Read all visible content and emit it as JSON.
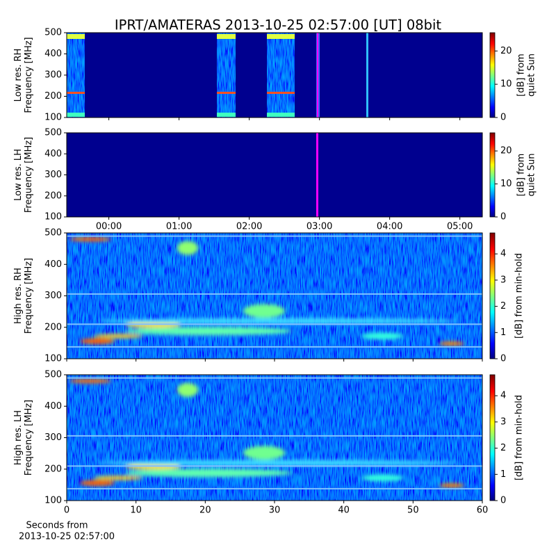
{
  "title": "IPRT/AMATERAS 2013-10-25 02:57:00 [UT]   08bit",
  "chart_data": [
    {
      "type": "heatmap",
      "ylabel": [
        "Low res. RH",
        "Frequency [MHz]"
      ],
      "ylim": [
        100,
        500
      ],
      "yticks": [
        100,
        200,
        300,
        400,
        500
      ],
      "xlim": [
        -0.6,
        5.32
      ],
      "colorbar_label": [
        "[dB] from",
        "quiet Sun"
      ],
      "clim": [
        0,
        25.5
      ],
      "cticks": [
        0,
        10,
        20
      ],
      "colormap": "jet"
    },
    {
      "type": "heatmap",
      "ylabel": [
        "Low res. LH",
        "Frequency [MHz]"
      ],
      "ylim": [
        100,
        500
      ],
      "yticks": [
        100,
        200,
        300,
        400,
        500
      ],
      "xlim": [
        -0.6,
        5.32
      ],
      "xticks": [
        {
          "value": 0,
          "label": "00:00"
        },
        {
          "value": 1,
          "label": "01:00"
        },
        {
          "value": 2,
          "label": "02:00"
        },
        {
          "value": 3,
          "label": "03:00"
        },
        {
          "value": 4,
          "label": "04:00"
        },
        {
          "value": 5,
          "label": "05:00"
        }
      ],
      "colorbar_label": [
        "[dB] from",
        "quiet Sun"
      ],
      "clim": [
        0,
        25.5
      ],
      "cticks": [
        0,
        10,
        20
      ],
      "colormap": "jet"
    },
    {
      "type": "heatmap",
      "ylabel": [
        "High res. RH",
        "Frequency [MHz]"
      ],
      "ylim": [
        100,
        500
      ],
      "yticks": [
        100,
        200,
        300,
        400,
        500
      ],
      "xlim": [
        0,
        60
      ],
      "colorbar_label": [
        "[dB] from min-hold"
      ],
      "clim": [
        0,
        4.8
      ],
      "cticks": [
        0,
        1,
        2,
        3,
        4
      ],
      "colormap": "jet"
    },
    {
      "type": "heatmap",
      "ylabel": [
        "High res. LH",
        "Frequency [MHz]"
      ],
      "ylim": [
        100,
        500
      ],
      "yticks": [
        100,
        200,
        300,
        400,
        500
      ],
      "xlim": [
        0,
        60
      ],
      "xticks": [
        0,
        10,
        20,
        30,
        40,
        50,
        60
      ],
      "xlabel": [
        "Seconds from",
        "2013-10-25 02:57:00"
      ],
      "colorbar_label": [
        "[dB] from min-hold"
      ],
      "clim": [
        0,
        4.8
      ],
      "cticks": [
        0,
        1,
        2,
        3,
        4
      ],
      "colormap": "jet"
    }
  ]
}
